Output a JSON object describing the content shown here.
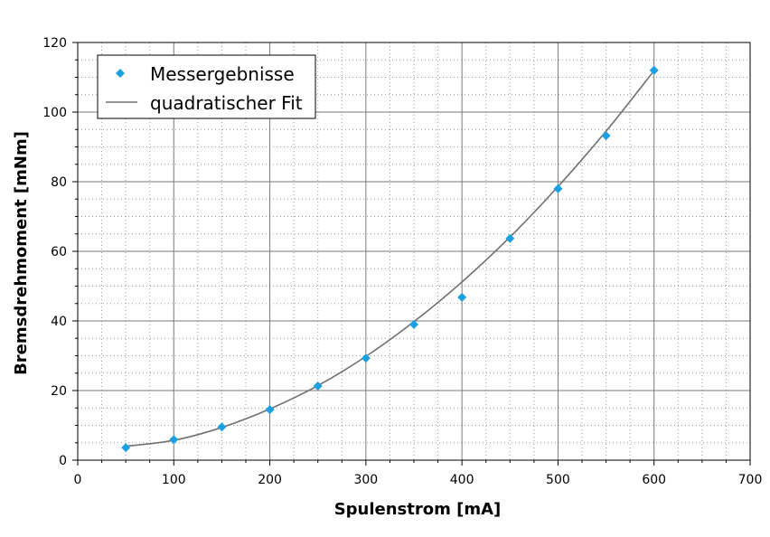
{
  "chart_data": {
    "type": "scatter",
    "title": "",
    "xlabel": "Spulenstrom [mA]",
    "ylabel": "Bremsdrehmoment [mNm]",
    "xlim": [
      0,
      700
    ],
    "ylim": [
      0,
      120
    ],
    "xticks": [
      "0",
      "100",
      "200",
      "300",
      "400",
      "500",
      "600",
      "700"
    ],
    "yticks": [
      "0",
      "20",
      "40",
      "60",
      "80",
      "100",
      "120"
    ],
    "grid": true,
    "minor_grid": true,
    "legend_position": "top-left",
    "series": [
      {
        "name": "Messergebnisse",
        "kind": "scatter",
        "marker": "diamond",
        "color": "#1BA1E2",
        "x": [
          50,
          100,
          150,
          200,
          250,
          300,
          350,
          400,
          450,
          500,
          550,
          600
        ],
        "y": [
          3.6,
          5.9,
          9.5,
          14.5,
          21.3,
          29.3,
          39.0,
          46.8,
          63.7,
          78.0,
          93.2,
          112.0
        ]
      },
      {
        "name": "quadratischer Fit",
        "kind": "line",
        "color": "#707070",
        "x": [
          50,
          100,
          150,
          200,
          250,
          300,
          350,
          400,
          450,
          500,
          550,
          600
        ],
        "y": [
          4.0,
          5.7,
          9.4,
          14.7,
          21.4,
          29.8,
          39.8,
          51.2,
          64.1,
          78.6,
          94.5,
          111.9
        ]
      }
    ]
  }
}
